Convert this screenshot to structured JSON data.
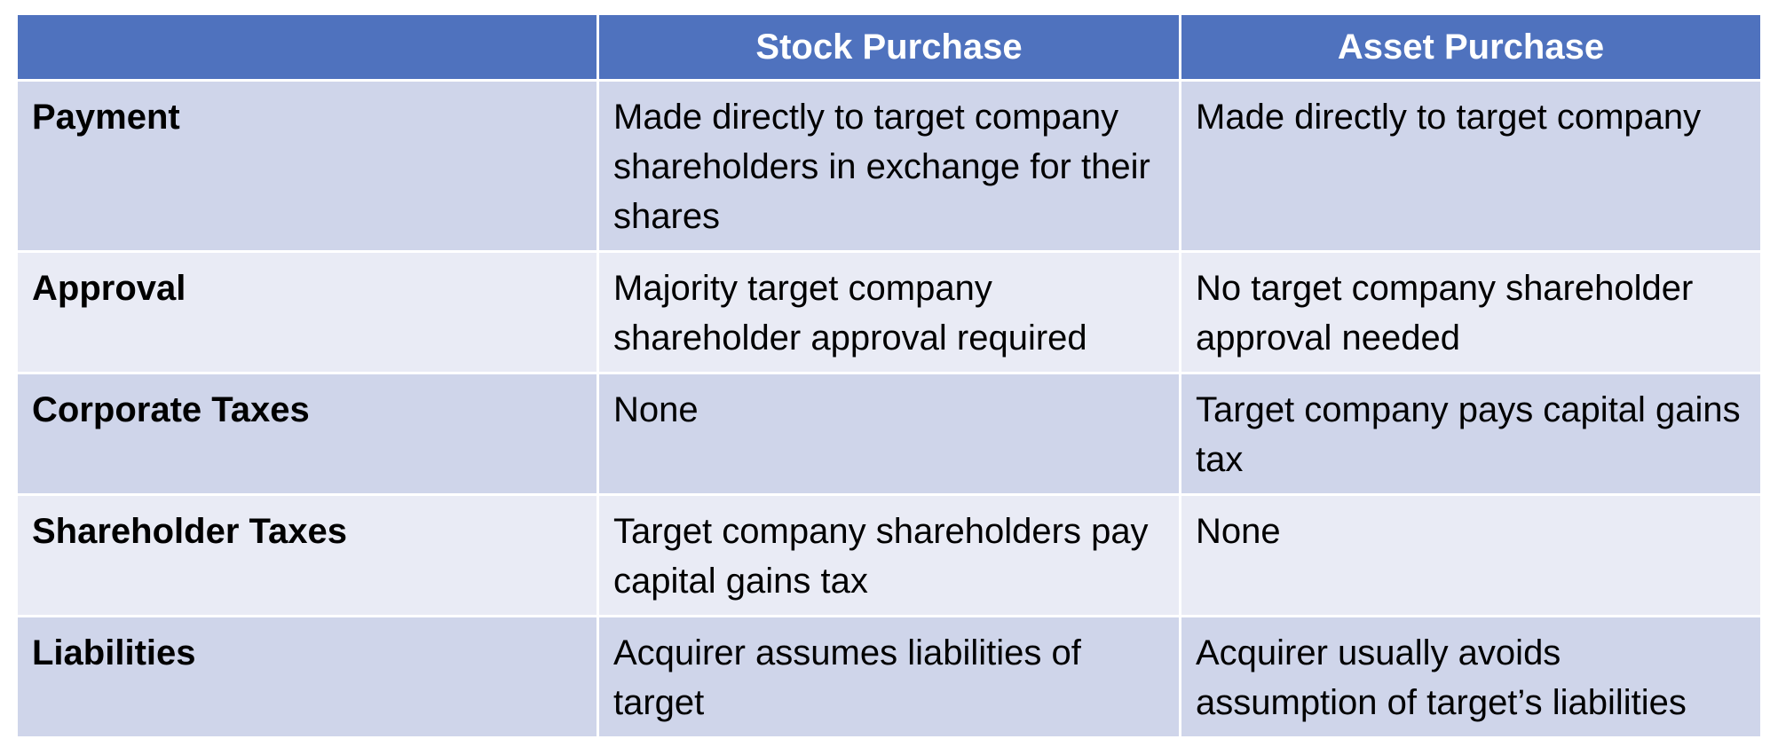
{
  "colors": {
    "header_bg": "#4f72be",
    "row_dark": "#cfd5ea",
    "row_light": "#e9ebf5"
  },
  "table": {
    "headers": [
      "",
      "Stock Purchase",
      "Asset Purchase"
    ],
    "rows": [
      {
        "label": "Payment",
        "stock": "Made directly to target company shareholders in exchange for their shares",
        "asset": "Made directly to target company"
      },
      {
        "label": "Approval",
        "stock": "Majority target company shareholder approval required",
        "asset": "No target company shareholder approval needed"
      },
      {
        "label": "Corporate Taxes",
        "stock": "None",
        "asset": "Target company pays capital gains tax"
      },
      {
        "label": "Shareholder Taxes",
        "stock": "Target company shareholders pay capital gains tax",
        "asset": "None"
      },
      {
        "label": "Liabilities",
        "stock": "Acquirer assumes liabilities of target",
        "asset": "Acquirer usually avoids assumption of target’s liabilities"
      }
    ]
  }
}
